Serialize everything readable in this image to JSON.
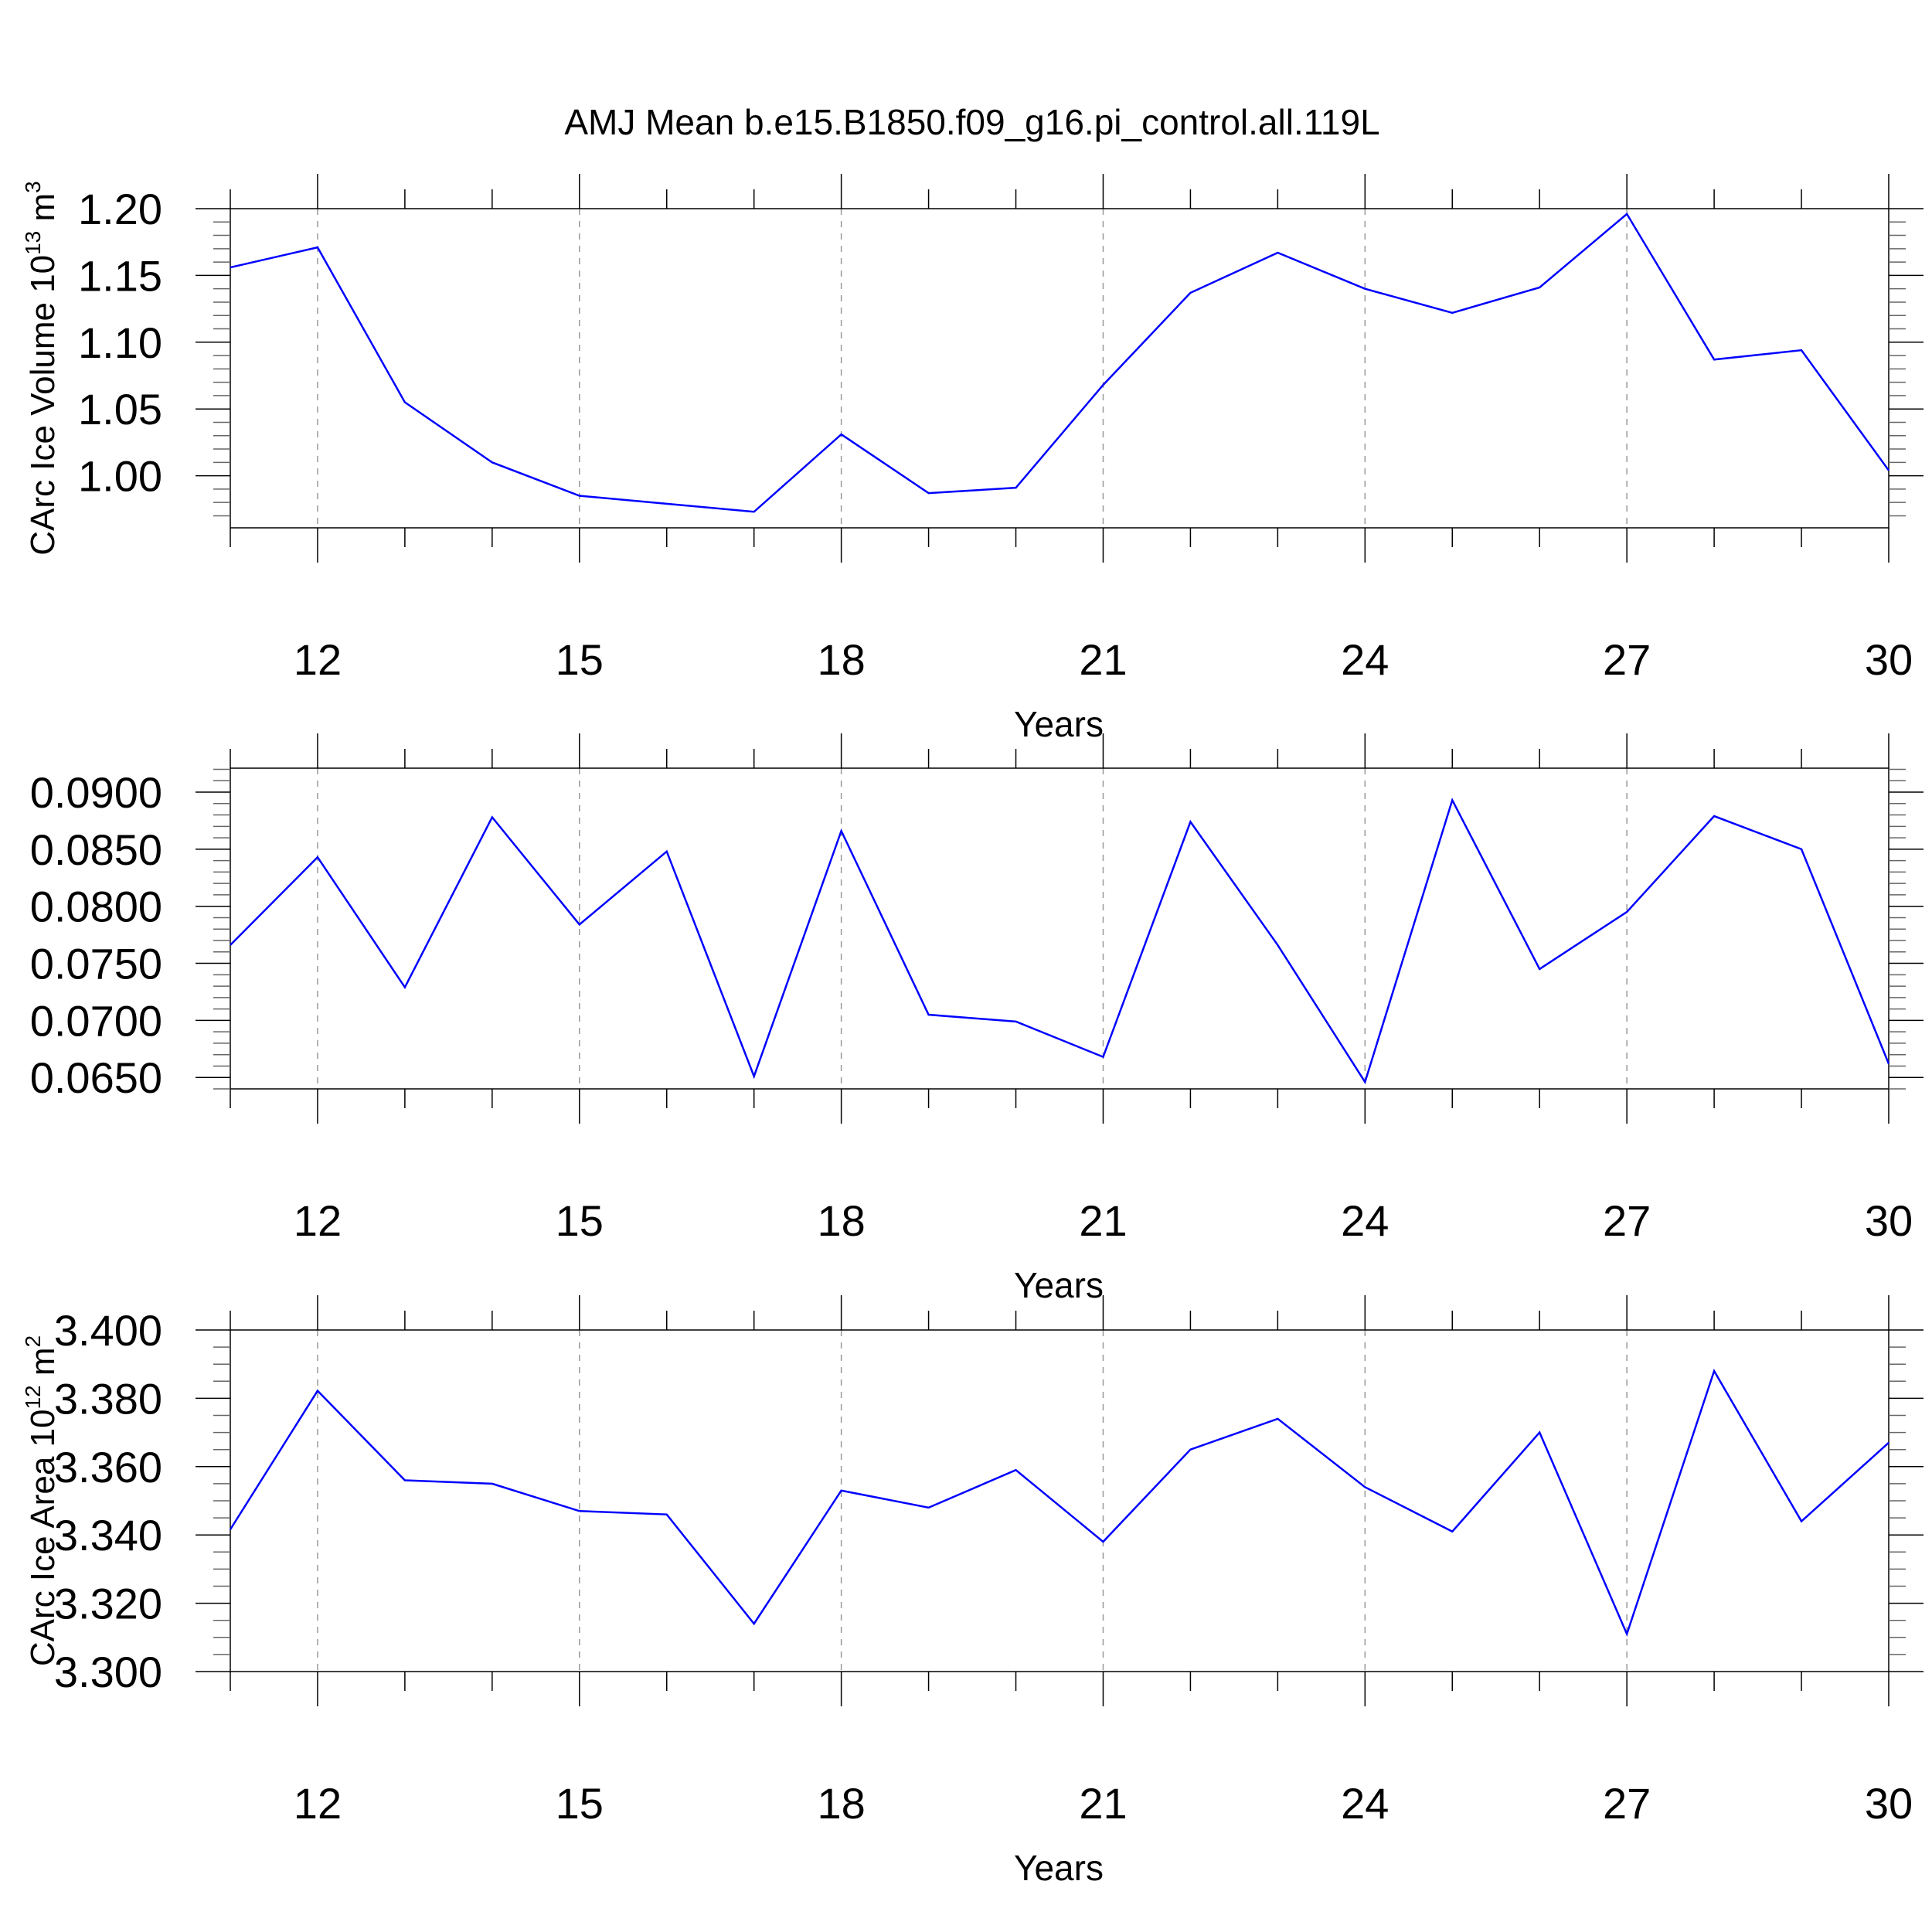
{
  "title": "AMJ Mean b.e15.B1850.f09_g16.pi_control.all.119L",
  "line_color": "#0000ff",
  "chart_data": [
    {
      "type": "line",
      "xlabel": "Years",
      "ylabel": "CArc Ice Volume 10",
      "ylabel_sup": "13",
      "ylabel_unit": " m",
      "ylabel_unit_sup": "3",
      "xlim": [
        11,
        30
      ],
      "ylim": [
        0.961,
        1.2
      ],
      "xticks": [
        12,
        15,
        18,
        21,
        24,
        27,
        30
      ],
      "yticks": [
        "1.00",
        "1.05",
        "1.10",
        "1.15",
        "1.20"
      ],
      "yminor_step": 0.01,
      "grid": "vertical dashed at major x ticks",
      "x": [
        11,
        12,
        13,
        14,
        15,
        16,
        17,
        18,
        19,
        20,
        21,
        22,
        23,
        24,
        25,
        26,
        27,
        28,
        29,
        30
      ],
      "y": [
        1.156,
        1.171,
        1.055,
        1.01,
        0.985,
        0.979,
        0.973,
        1.031,
        0.987,
        0.991,
        1.068,
        1.137,
        1.167,
        1.14,
        1.122,
        1.141,
        1.196,
        1.087,
        1.094,
        1.004
      ]
    },
    {
      "type": "line",
      "xlabel": "Years",
      "xlim": [
        11,
        30
      ],
      "ylim": [
        0.064,
        0.0921
      ],
      "xticks": [
        12,
        15,
        18,
        21,
        24,
        27,
        30
      ],
      "yticks": [
        "0.0650",
        "0.0700",
        "0.0750",
        "0.0800",
        "0.0850",
        "0.0900"
      ],
      "yminor_step": 0.001,
      "grid": "vertical dashed at major x ticks",
      "x": [
        11,
        12,
        13,
        14,
        15,
        16,
        17,
        18,
        19,
        20,
        21,
        22,
        23,
        24,
        25,
        26,
        27,
        28,
        29,
        30
      ],
      "y": [
        0.0766,
        0.0843,
        0.0729,
        0.0878,
        0.0784,
        0.0848,
        0.0651,
        0.0866,
        0.0705,
        0.0699,
        0.0668,
        0.0874,
        0.0766,
        0.0646,
        0.0893,
        0.0745,
        0.0795,
        0.0879,
        0.085,
        0.0662
      ]
    },
    {
      "type": "line",
      "xlabel": "Years",
      "ylabel": "CArc Ice Area 10",
      "ylabel_sup": "12",
      "ylabel_unit": " m",
      "ylabel_unit_sup": "2",
      "xlim": [
        11,
        30
      ],
      "ylim": [
        3.3,
        3.4
      ],
      "xticks": [
        12,
        15,
        18,
        21,
        24,
        27,
        30
      ],
      "yticks": [
        "3.300",
        "3.320",
        "3.340",
        "3.360",
        "3.380",
        "3.400"
      ],
      "yminor_step": 0.005,
      "grid": "vertical dashed at major x ticks",
      "x": [
        11,
        12,
        13,
        14,
        15,
        16,
        17,
        18,
        19,
        20,
        21,
        22,
        23,
        24,
        25,
        26,
        27,
        28,
        29,
        30
      ],
      "y": [
        3.3416,
        3.3822,
        3.356,
        3.355,
        3.347,
        3.346,
        3.314,
        3.353,
        3.348,
        3.359,
        3.338,
        3.365,
        3.374,
        3.354,
        3.341,
        3.37,
        3.311,
        3.388,
        3.344,
        3.367
      ]
    }
  ]
}
